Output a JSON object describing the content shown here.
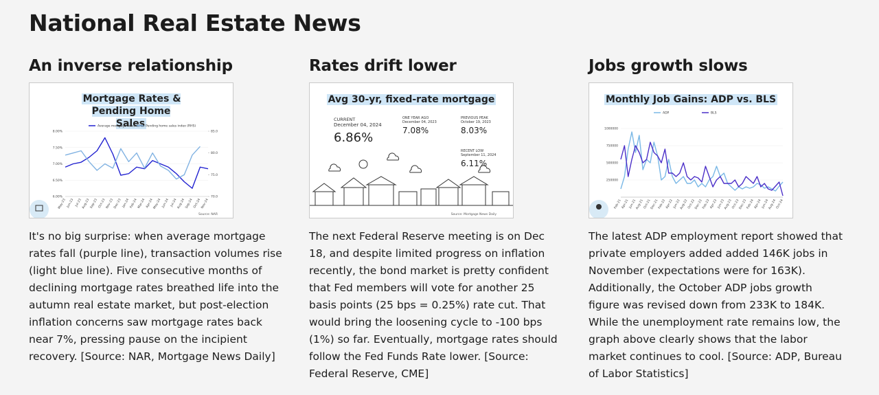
{
  "header": {
    "title": "National Real Estate News"
  },
  "articles": [
    {
      "heading": "An inverse relationship",
      "chart_data": {
        "type": "line",
        "title": "Mortgage Rates & Pending Home Sales",
        "categories": [
          "May-23",
          "Jun-23",
          "Jul-23",
          "Aug-23",
          "Sep-23",
          "Oct-23",
          "Nov-23",
          "Dec-23",
          "Jan-24",
          "Feb-24",
          "Mar-24",
          "Apr-24",
          "May-24",
          "Jun-24",
          "Jul-24",
          "Aug-24",
          "Sep-24",
          "Oct-24",
          "Nov-24"
        ],
        "series": [
          {
            "name": "Average mortgage rates (LHS)",
            "color": "#2020d0",
            "values": [
              6.9,
              7.0,
              7.05,
              7.2,
              7.4,
              7.8,
              7.3,
              6.65,
              6.7,
              6.9,
              6.85,
              7.1,
              7.0,
              6.9,
              6.7,
              6.45,
              6.25,
              6.9,
              6.85
            ]
          },
          {
            "name": "Pending home sales index (RHS)",
            "color": "#80b2e2",
            "axis": "y2",
            "values": [
              79.5,
              80,
              80.5,
              78,
              76,
              77.5,
              76.5,
              81,
              78,
              80,
              76.5,
              80,
              77,
              76,
              74,
              75,
              79.5,
              81.5,
              null
            ]
          }
        ],
        "ylim": [
          6.0,
          8.0
        ],
        "yticks": [
          {
            "value": 6.0,
            "label": "6.00%"
          },
          {
            "value": 6.5,
            "label": "6.50%"
          },
          {
            "value": 7.0,
            "label": "7.00%"
          },
          {
            "value": 7.5,
            "label": "7.50%"
          },
          {
            "value": 8.0,
            "label": "8.00%"
          }
        ],
        "y2lim": [
          70,
          85
        ],
        "y2ticks": [
          {
            "value": 70,
            "label": "70.0"
          },
          {
            "value": 75,
            "label": "75.0"
          },
          {
            "value": 80,
            "label": "80.0"
          },
          {
            "value": 85,
            "label": "85.0"
          }
        ],
        "source": "Source: NAR"
      },
      "body": "It's no big surprise: when average mortgage rates fall (purple line), transaction volumes rise (light blue line). Five consecutive months of declining mortgage rates breathed life into the autumn real estate market, but post-election inflation concerns saw mortgage rates back near 7%, pressing pause on the incipient recovery. [Source: NAR, Mortgage News Daily]"
    },
    {
      "heading": "Rates drift lower",
      "card": {
        "title": "Avg 30-yr, fixed-rate mortgage",
        "stats": [
          {
            "label": "CURRENT",
            "date": "December 04, 2024",
            "value": "6.86%"
          },
          {
            "label": "ONE YEAR AGO",
            "date": "December 04, 2023",
            "value": "7.08%"
          },
          {
            "label": "PREVIOUS PEAK",
            "date": "October 19, 2023",
            "value": "8.03%"
          },
          {
            "label": "RECENT LOW",
            "date": "September 11, 2024",
            "value": "6.11%"
          }
        ],
        "source": "Source: Mortgage News Daily"
      },
      "body": "The next Federal Reserve meeting is on Dec 18, and despite limited progress on inflation recently, the bond market is pretty confident that Fed members will vote for another 25 basis points (25 bps = 0.25%) rate cut. That would bring the loosening cycle to -100 bps (1%) so far. Eventually, mortgage rates should follow the Fed Funds Rate lower. [Source: Federal Reserve, CME]"
    },
    {
      "heading": "Jobs growth slows",
      "chart_data": {
        "type": "line",
        "title": "Monthly Job Gains: ADP vs. BLS",
        "categories": [
          "Feb-21",
          null,
          "Apr-21",
          null,
          "Jun-21",
          null,
          "Aug-21",
          null,
          "Oct-21",
          null,
          "Dec-21",
          null,
          "Feb-22",
          null,
          "Apr-22",
          null,
          "Jun-22",
          null,
          "Aug-22",
          null,
          "Oct-22",
          null,
          "Dec-22",
          null,
          "Feb-23",
          null,
          "Apr-23",
          null,
          "Jun-23",
          null,
          "Aug-23",
          null,
          "Oct-23",
          null,
          "Dec-23",
          null,
          "Feb-24",
          null,
          "Apr-24",
          null,
          "Jun-24",
          null,
          "Aug-24",
          null,
          "Oct-24"
        ],
        "series": [
          {
            "name": "ADP",
            "color": "#7ab8e6",
            "values": [
              120000,
              300000,
              700000,
              950000,
              650000,
              900000,
              400000,
              550000,
              500000,
              800000,
              600000,
              250000,
              300000,
              550000,
              300000,
              200000,
              250000,
              300000,
              200000,
              200000,
              250000,
              150000,
              200000,
              150000,
              250000,
              300000,
              450000,
              300000,
              350000,
              200000,
              150000,
              100000,
              150000,
              120000,
              150000,
              130000,
              150000,
              200000,
              180000,
              130000,
              150000,
              120000,
              90000,
              160000,
              220000
            ]
          },
          {
            "name": "BLS",
            "color": "#4b2fc8",
            "values": [
              550000,
              750000,
              300000,
              550000,
              750000,
              650000,
              500000,
              550000,
              800000,
              650000,
              600000,
              500000,
              700000,
              350000,
              350000,
              300000,
              350000,
              500000,
              300000,
              250000,
              300000,
              280000,
              220000,
              450000,
              300000,
              150000,
              250000,
              300000,
              200000,
              200000,
              200000,
              250000,
              150000,
              200000,
              300000,
              250000,
              200000,
              300000,
              150000,
              200000,
              120000,
              100000,
              160000,
              220000,
              20000
            ]
          }
        ],
        "ylim": [
          0,
          1100000
        ],
        "yticks": [
          250000,
          500000,
          750000,
          1000000
        ]
      },
      "body": "The latest ADP employment report showed that private employers added added 146K jobs in November (expectations were for 163K). Additionally, the October ADP jobs growth figure was revised down from 233K to 184K. While the unemployment rate remains low, the graph above clearly shows that the labor market continues to cool. [Source: ADP, Bureau of Labor Statistics]"
    }
  ]
}
